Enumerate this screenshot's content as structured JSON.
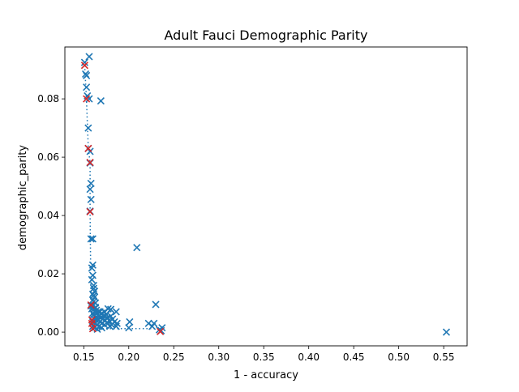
{
  "chart_data": {
    "type": "scatter",
    "title": "Adult Fauci Demographic Parity",
    "xlabel": "1 - accuracy",
    "ylabel": "demographic_parity",
    "xlim": [
      0.129,
      0.576
    ],
    "ylim": [
      -0.0047,
      0.0978
    ],
    "xticks": [
      {
        "value": 0.15,
        "label": "0.15"
      },
      {
        "value": 0.2,
        "label": "0.20"
      },
      {
        "value": 0.25,
        "label": "0.25"
      },
      {
        "value": 0.3,
        "label": "0.30"
      },
      {
        "value": 0.35,
        "label": "0.35"
      },
      {
        "value": 0.4,
        "label": "0.40"
      },
      {
        "value": 0.45,
        "label": "0.45"
      },
      {
        "value": 0.5,
        "label": "0.50"
      },
      {
        "value": 0.55,
        "label": "0.55"
      }
    ],
    "yticks": [
      {
        "value": 0.0,
        "label": "0.00"
      },
      {
        "value": 0.02,
        "label": "0.02"
      },
      {
        "value": 0.04,
        "label": "0.04"
      },
      {
        "value": 0.06,
        "label": "0.06"
      },
      {
        "value": 0.08,
        "label": "0.08"
      }
    ],
    "grid": false,
    "legend": false,
    "colors": {
      "models": "#1f77b4",
      "pareto": "#d62728",
      "frontier_line": "#1f77b4"
    },
    "series": [
      {
        "marker": "x",
        "color": "#1f77b4",
        "points": [
          [
            0.156,
            0.0945
          ],
          [
            0.151,
            0.0925
          ],
          [
            0.152,
            0.0885
          ],
          [
            0.153,
            0.088
          ],
          [
            0.153,
            0.084
          ],
          [
            0.154,
            0.081
          ],
          [
            0.156,
            0.08
          ],
          [
            0.169,
            0.0793
          ],
          [
            0.155,
            0.07
          ],
          [
            0.155,
            0.063
          ],
          [
            0.157,
            0.062
          ],
          [
            0.157,
            0.058
          ],
          [
            0.158,
            0.051
          ],
          [
            0.157,
            0.049
          ],
          [
            0.158,
            0.0455
          ],
          [
            0.157,
            0.0415
          ],
          [
            0.158,
            0.032
          ],
          [
            0.16,
            0.032
          ],
          [
            0.209,
            0.029
          ],
          [
            0.16,
            0.023
          ],
          [
            0.159,
            0.022
          ],
          [
            0.16,
            0.0195
          ],
          [
            0.159,
            0.018
          ],
          [
            0.161,
            0.016
          ],
          [
            0.161,
            0.015
          ],
          [
            0.162,
            0.014
          ],
          [
            0.16,
            0.013
          ],
          [
            0.161,
            0.0125
          ],
          [
            0.162,
            0.012
          ],
          [
            0.16,
            0.011
          ],
          [
            0.161,
            0.0105
          ],
          [
            0.163,
            0.01
          ],
          [
            0.23,
            0.0095
          ],
          [
            0.158,
            0.009
          ],
          [
            0.16,
            0.009
          ],
          [
            0.163,
            0.0085
          ],
          [
            0.159,
            0.008
          ],
          [
            0.162,
            0.008
          ],
          [
            0.177,
            0.008
          ],
          [
            0.18,
            0.0078
          ],
          [
            0.164,
            0.0075
          ],
          [
            0.166,
            0.007
          ],
          [
            0.168,
            0.007
          ],
          [
            0.173,
            0.007
          ],
          [
            0.186,
            0.007
          ],
          [
            0.16,
            0.0065
          ],
          [
            0.165,
            0.0065
          ],
          [
            0.17,
            0.0065
          ],
          [
            0.175,
            0.006
          ],
          [
            0.161,
            0.006
          ],
          [
            0.167,
            0.0055
          ],
          [
            0.172,
            0.0055
          ],
          [
            0.18,
            0.0055
          ],
          [
            0.163,
            0.005
          ],
          [
            0.169,
            0.005
          ],
          [
            0.176,
            0.005
          ],
          [
            0.162,
            0.0045
          ],
          [
            0.166,
            0.0045
          ],
          [
            0.171,
            0.0045
          ],
          [
            0.182,
            0.0045
          ],
          [
            0.164,
            0.004
          ],
          [
            0.174,
            0.004
          ],
          [
            0.178,
            0.004
          ],
          [
            0.16,
            0.0035
          ],
          [
            0.168,
            0.0035
          ],
          [
            0.184,
            0.0035
          ],
          [
            0.201,
            0.0035
          ],
          [
            0.163,
            0.003
          ],
          [
            0.17,
            0.003
          ],
          [
            0.177,
            0.003
          ],
          [
            0.187,
            0.003
          ],
          [
            0.222,
            0.003
          ],
          [
            0.228,
            0.003
          ],
          [
            0.165,
            0.0025
          ],
          [
            0.173,
            0.0025
          ],
          [
            0.181,
            0.0025
          ],
          [
            0.16,
            0.002
          ],
          [
            0.167,
            0.002
          ],
          [
            0.179,
            0.002
          ],
          [
            0.186,
            0.002
          ],
          [
            0.226,
            0.002
          ],
          [
            0.162,
            0.0015
          ],
          [
            0.17,
            0.0015
          ],
          [
            0.2,
            0.0015
          ],
          [
            0.237,
            0.0015
          ],
          [
            0.165,
            0.001
          ],
          [
            0.234,
            0.0008
          ],
          [
            0.236,
            0.0005
          ],
          [
            0.553,
            0.0
          ]
        ]
      },
      {
        "marker": "x",
        "color": "#d62728",
        "points": [
          [
            0.151,
            0.0915
          ],
          [
            0.153,
            0.08
          ],
          [
            0.155,
            0.063
          ],
          [
            0.157,
            0.0582
          ],
          [
            0.157,
            0.0413
          ],
          [
            0.158,
            0.0093
          ],
          [
            0.159,
            0.0042
          ],
          [
            0.159,
            0.003
          ],
          [
            0.16,
            0.0012
          ],
          [
            0.235,
            0.0002
          ]
        ]
      }
    ],
    "frontier": [
      [
        0.151,
        0.0915
      ],
      [
        0.153,
        0.08
      ],
      [
        0.155,
        0.063
      ],
      [
        0.157,
        0.0582
      ],
      [
        0.157,
        0.0413
      ],
      [
        0.158,
        0.0093
      ],
      [
        0.159,
        0.0042
      ],
      [
        0.159,
        0.003
      ],
      [
        0.16,
        0.0012
      ],
      [
        0.235,
        0.0012
      ],
      [
        0.235,
        0.0002
      ]
    ]
  }
}
